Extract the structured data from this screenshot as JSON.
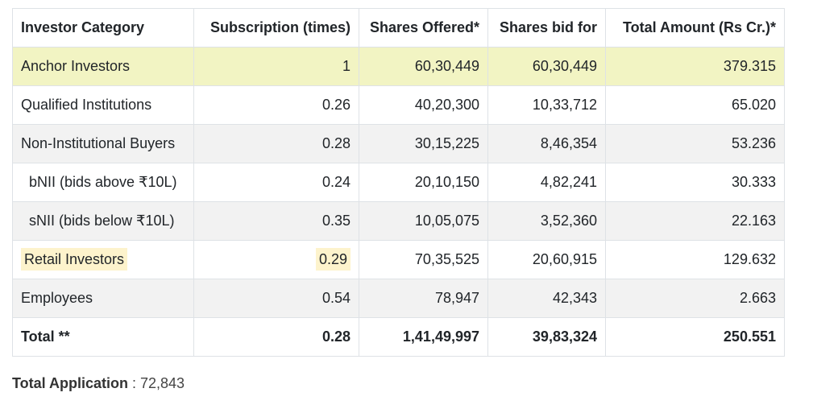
{
  "table": {
    "headers": [
      "Investor Category",
      "Subscription (times)",
      "Shares Offered*",
      "Shares bid for",
      "Total Amount (Rs Cr.)*"
    ],
    "rows": [
      {
        "category": "Anchor Investors",
        "subscription": "1",
        "offered": "60,30,449",
        "bid": "60,30,449",
        "amount": "379.315"
      },
      {
        "category": "Qualified Institutions",
        "subscription": "0.26",
        "offered": "40,20,300",
        "bid": "10,33,712",
        "amount": "65.020"
      },
      {
        "category": "Non-Institutional Buyers",
        "subscription": "0.28",
        "offered": "30,15,225",
        "bid": "8,46,354",
        "amount": "53.236"
      },
      {
        "category": "bNII (bids above ₹10L)",
        "subscription": "0.24",
        "offered": "20,10,150",
        "bid": "4,82,241",
        "amount": "30.333"
      },
      {
        "category": "sNII (bids below ₹10L)",
        "subscription": "0.35",
        "offered": "10,05,075",
        "bid": "3,52,360",
        "amount": "22.163"
      },
      {
        "category": "Retail Investors",
        "subscription": "0.29",
        "offered": "70,35,525",
        "bid": "20,60,915",
        "amount": "129.632"
      },
      {
        "category": "Employees",
        "subscription": "0.54",
        "offered": "78,947",
        "bid": "42,343",
        "amount": "2.663"
      },
      {
        "category": "Total **",
        "subscription": "0.28",
        "offered": "1,41,49,997",
        "bid": "39,83,324",
        "amount": "250.551"
      }
    ]
  },
  "footer": {
    "label": "Total Application",
    "separator": " : ",
    "value": "72,843"
  },
  "colors": {
    "anchor_row": "#f2f4c3",
    "alt_row": "#f2f2f2",
    "highlight": "#fdf3cc",
    "border": "#dee2e6"
  }
}
